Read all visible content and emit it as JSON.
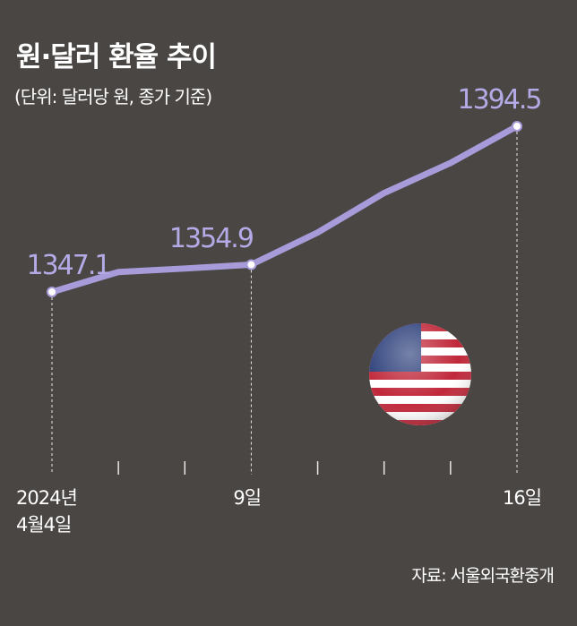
{
  "chart_data": {
    "type": "line",
    "title": "원·달러 환율 추이",
    "subtitle": "(단위: 달러당 원, 종가 기준)",
    "source": "자료: 서울외국환중개",
    "categories": [
      "2024년\n4월4일",
      null,
      null,
      "9일",
      null,
      null,
      null,
      "16일"
    ],
    "series": [
      {
        "name": "원·달러 환율",
        "color": "#a89bd9",
        "values": [
          1347.1,
          1352.8,
          1353.8,
          1354.9,
          1364.1,
          1375.4,
          1384.0,
          1394.5
        ]
      }
    ],
    "ylim": [
      1330,
      1400
    ]
  }
}
